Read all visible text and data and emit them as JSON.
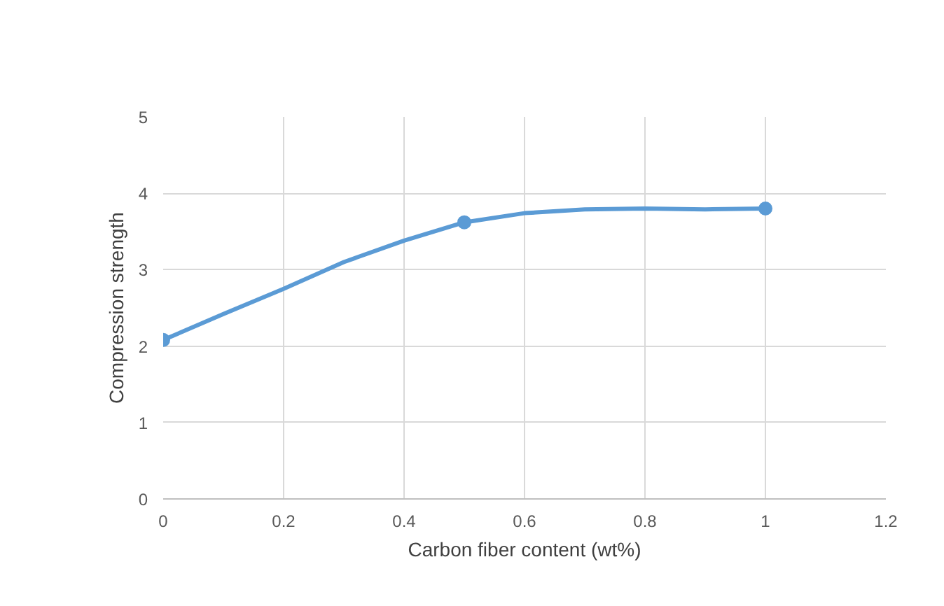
{
  "chart_data": {
    "type": "line",
    "xlabel": "Carbon fiber content (wt%)",
    "ylabel": "Compression strength",
    "x": [
      0,
      0.5,
      1
    ],
    "series": [
      {
        "marker": "none",
        "color": "#5b9bd5",
        "x": [
          0,
          0.1,
          0.2,
          0.3,
          0.4,
          0.5,
          0.6,
          0.7,
          0.8,
          0.9,
          1
        ],
        "values": [
          2.08,
          2.42,
          2.75,
          3.1,
          3.38,
          3.62,
          3.74,
          3.79,
          3.8,
          3.79,
          3.8
        ]
      },
      {
        "type": "scatter",
        "color": "#5b9bd5",
        "values": [
          2.08,
          3.62,
          3.8
        ]
      }
    ],
    "xlim": [
      0,
      1.2
    ],
    "xticks": [
      0,
      0.2,
      0.4,
      0.6,
      0.8,
      1,
      1.2
    ],
    "ylim": [
      0,
      5
    ],
    "yticks": [
      0,
      1,
      2,
      3,
      4,
      5
    ],
    "grid": true,
    "marker": "circle",
    "line_style": "solid"
  }
}
